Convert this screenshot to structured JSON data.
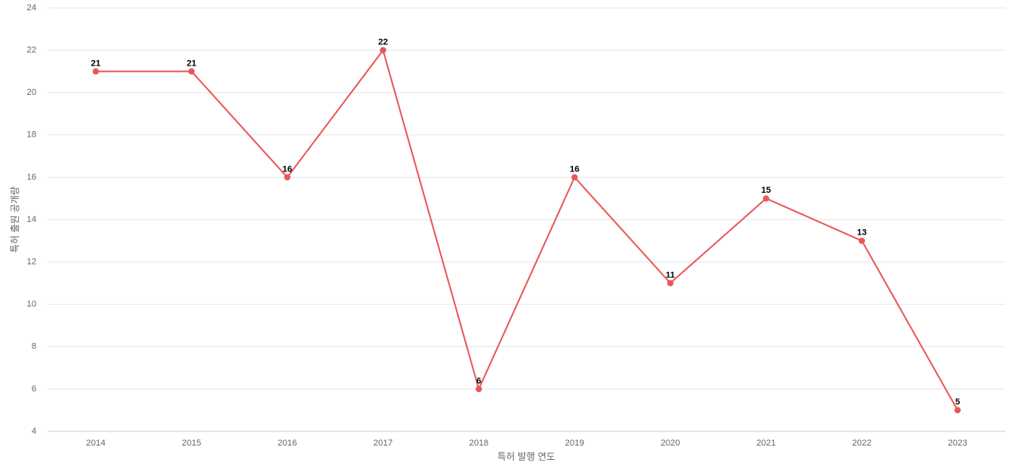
{
  "chart_data": {
    "type": "line",
    "x_label": "특허 발행 연도",
    "y_label": "특허 출원 공개량",
    "categories": [
      "2014",
      "2015",
      "2016",
      "2017",
      "2018",
      "2019",
      "2020",
      "2021",
      "2022",
      "2023"
    ],
    "series": [
      {
        "name": "특허 출원 공개량",
        "color": "#e8585a",
        "values": [
          21,
          21,
          16,
          22,
          6,
          16,
          11,
          15,
          13,
          5
        ]
      }
    ],
    "ylim": [
      4,
      24
    ],
    "yticks": [
      4,
      6,
      8,
      10,
      12,
      14,
      16,
      18,
      20,
      22,
      24
    ],
    "grid": true
  }
}
